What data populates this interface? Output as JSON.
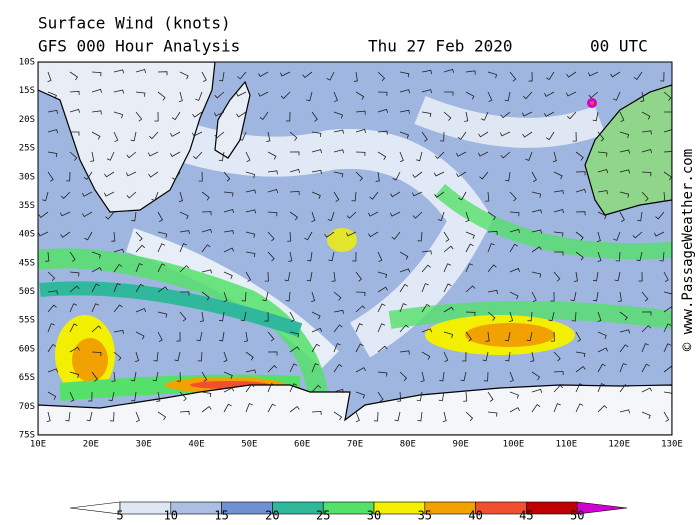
{
  "header": {
    "title": "Surface Wind (knots)",
    "subtitle": "GFS 000 Hour Analysis",
    "date": "Thu 27 Feb 2020",
    "time": "00 UTC"
  },
  "map": {
    "lat_labels": [
      "10S",
      "15S",
      "20S",
      "25S",
      "30S",
      "35S",
      "40S",
      "45S",
      "50S",
      "55S",
      "60S",
      "65S",
      "70S",
      "75S"
    ],
    "lon_labels": [
      "10E",
      "20E",
      "30E",
      "40E",
      "50E",
      "60E",
      "70E",
      "80E",
      "90E",
      "100E",
      "110E",
      "120E",
      "130E"
    ]
  },
  "colorbar": {
    "ticks": [
      5,
      10,
      15,
      20,
      25,
      30,
      35,
      40,
      45,
      50
    ],
    "colors": [
      "#ffffff",
      "#dfe7f3",
      "#aabfe2",
      "#6f90d2",
      "#2fb89c",
      "#55e06a",
      "#f2f000",
      "#f2a200",
      "#f05030",
      "#c00000",
      "#d000d0"
    ]
  },
  "credit": "© www.PassageWeather.com"
}
